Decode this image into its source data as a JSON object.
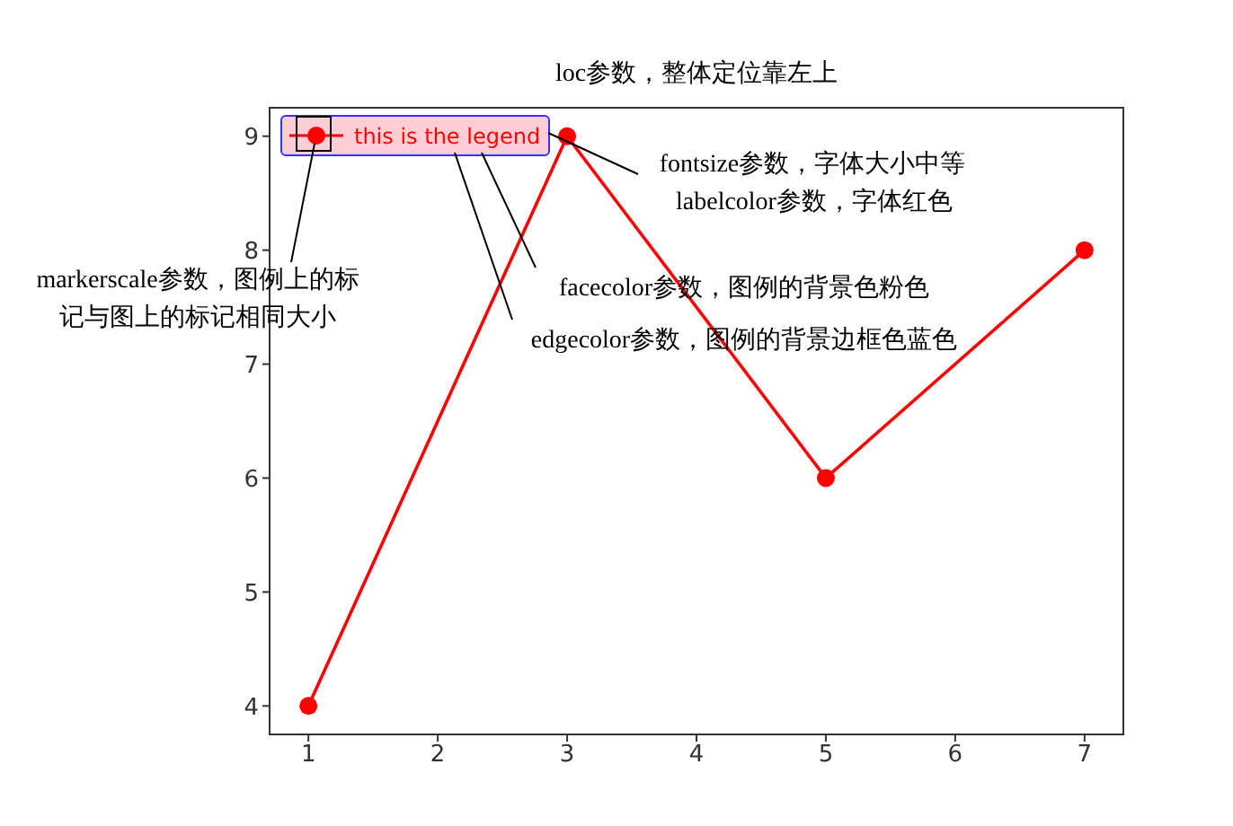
{
  "chart_data": {
    "type": "line",
    "title": "loc参数，整体定位靠左上",
    "x": [
      1,
      3,
      5,
      7
    ],
    "series": [
      {
        "name": "this is the legend",
        "color": "#ff0000",
        "values": [
          4,
          9,
          6,
          8
        ]
      }
    ],
    "xlim": [
      0.7,
      7.3
    ],
    "xticks": [
      1,
      2,
      3,
      4,
      5,
      6,
      7
    ],
    "ylim": [
      3.75,
      9.25
    ],
    "yticks": [
      4,
      5,
      6,
      7,
      8,
      9
    ],
    "marker": "circle",
    "line_style": "solid",
    "grid": false,
    "legend": "top left",
    "annotations": [
      "fontsize参数，字体大小中等",
      "labelcolor参数，字体红色",
      "facecolor参数，图例的背景色粉色",
      "edgecolor参数，图例的背景边框色蓝色",
      "markerscale参数，图例上的标记与图上的标记相同大小"
    ]
  }
}
